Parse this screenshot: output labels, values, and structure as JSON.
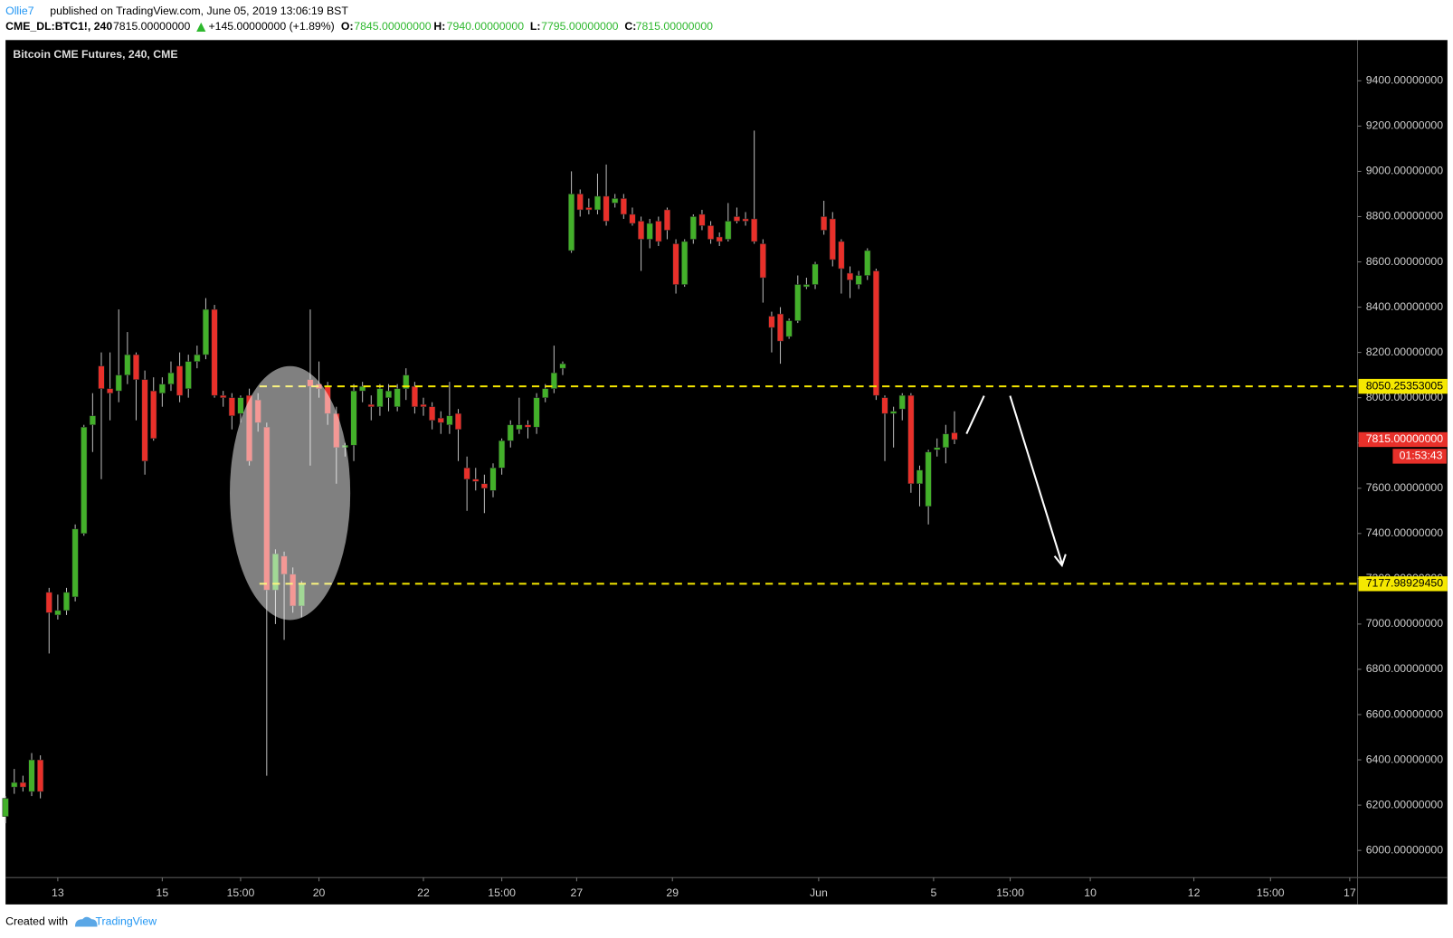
{
  "header": {
    "author": "Ollie7",
    "published": "published on TradingView.com, June 05, 2019 13:06:19 BST",
    "symbol": "CME_DL:BTC1!, 240",
    "last": "7815.00000000",
    "change": "+145.00000000 (+1.89%)",
    "o_label": "O:",
    "o": "7845.00000000",
    "h_label": "H:",
    "h": "7940.00000000",
    "l_label": "L:",
    "l": "7795.00000000",
    "c_label": "C:",
    "c": "7815.00000000"
  },
  "footer": {
    "created": "Created with",
    "brand": "TradingView"
  },
  "chart_data": {
    "type": "candlestick",
    "title": "Bitcoin CME Futures, 240, CME",
    "up_color": "#43b02a",
    "down_color": "#e8302a",
    "open": [
      6150,
      6280,
      6300,
      6260,
      6400,
      7140,
      7040,
      7060,
      7120,
      7400,
      7880,
      8140,
      8040,
      8030,
      8100,
      8190,
      8080,
      8030,
      8020,
      8060,
      8140,
      8040,
      8160,
      8190,
      8390,
      8010,
      8000,
      7930,
      8010,
      7990,
      7870,
      7150,
      7300,
      7220,
      7080,
      8080,
      8060,
      8050,
      7930,
      7780,
      7790,
      8030,
      7970,
      7960,
      8000,
      7960,
      8040,
      8050,
      7970,
      7960,
      7910,
      7880,
      7930,
      7690,
      7640,
      7620,
      7590,
      7690,
      7810,
      7860,
      7880,
      7870,
      8000,
      8040,
      8130,
      8650,
      8900,
      8840,
      8830,
      8890,
      8860,
      8880,
      8810,
      8780,
      8700,
      8780,
      8830,
      8680,
      8500,
      8700,
      8810,
      8760,
      8710,
      8700,
      8800,
      8790,
      8790,
      8680,
      8360,
      8370,
      8270,
      8340,
      8490,
      8500,
      8800,
      8790,
      8690,
      8550,
      8500,
      8540,
      8560,
      8000,
      7930,
      7950,
      8010,
      7620,
      7520,
      7770,
      7780,
      7845
    ],
    "high": [
      6240,
      6360,
      6330,
      6430,
      6420,
      7160,
      7130,
      7160,
      7440,
      7880,
      8020,
      8200,
      8200,
      8390,
      8290,
      8200,
      8120,
      8090,
      8090,
      8160,
      8200,
      8190,
      8230,
      8440,
      8410,
      8030,
      8020,
      8010,
      8040,
      8020,
      7890,
      7330,
      7320,
      7250,
      7190,
      8390,
      8160,
      8070,
      7960,
      7800,
      8060,
      8070,
      8010,
      8060,
      8060,
      8060,
      8130,
      8070,
      8000,
      7980,
      7940,
      8070,
      7950,
      7740,
      7690,
      7660,
      7710,
      7820,
      7900,
      8000,
      7900,
      8020,
      8060,
      8230,
      8160,
      9000,
      8920,
      8880,
      8990,
      9030,
      8900,
      8900,
      8840,
      8800,
      8790,
      8800,
      8840,
      8700,
      8700,
      8810,
      8830,
      8780,
      8730,
      8860,
      8840,
      8820,
      9180,
      8700,
      8380,
      8400,
      8350,
      8540,
      8530,
      8600,
      8870,
      8820,
      8700,
      8580,
      8560,
      8660,
      8570,
      8010,
      7960,
      8020,
      8020,
      7700,
      7770,
      7820,
      7880,
      7940
    ],
    "low": [
      6120,
      6250,
      6260,
      6240,
      6230,
      6870,
      7020,
      7040,
      7100,
      7390,
      7760,
      7640,
      7900,
      7980,
      8060,
      7900,
      7660,
      7810,
      7960,
      8030,
      7980,
      8000,
      8130,
      8170,
      8000,
      7960,
      7860,
      7890,
      7700,
      7850,
      6330,
      7000,
      6930,
      7050,
      7030,
      7700,
      8000,
      7880,
      7620,
      7740,
      7720,
      7980,
      7900,
      7920,
      7940,
      7940,
      7990,
      7930,
      7920,
      7860,
      7840,
      7840,
      7720,
      7500,
      7590,
      7490,
      7560,
      7660,
      7780,
      7840,
      7820,
      7840,
      7980,
      8020,
      8100,
      8640,
      8800,
      8810,
      8810,
      8760,
      8840,
      8790,
      8760,
      8560,
      8660,
      8670,
      8700,
      8460,
      8490,
      8680,
      8740,
      8680,
      8670,
      8690,
      8770,
      8760,
      8680,
      8420,
      8200,
      8150,
      8260,
      8330,
      8480,
      8480,
      8720,
      8580,
      8460,
      8440,
      8480,
      8520,
      7990,
      7720,
      7780,
      7900,
      7580,
      7520,
      7440,
      7740,
      7710,
      7795
    ],
    "close": [
      6230,
      6300,
      6280,
      6400,
      6260,
      7050,
      7060,
      7140,
      7420,
      7870,
      7920,
      8040,
      8020,
      8100,
      8190,
      8080,
      7720,
      7820,
      8060,
      8110,
      8010,
      8160,
      8190,
      8390,
      8010,
      8000,
      7920,
      8000,
      7720,
      7890,
      7150,
      7310,
      7220,
      7080,
      7180,
      8050,
      8040,
      7930,
      7780,
      7790,
      8030,
      8050,
      7960,
      8040,
      8030,
      8040,
      8100,
      7960,
      7960,
      7900,
      7890,
      7920,
      7860,
      7640,
      7630,
      7600,
      7690,
      7810,
      7880,
      7880,
      7870,
      8000,
      8040,
      8110,
      8150,
      8900,
      8830,
      8830,
      8890,
      8780,
      8880,
      8810,
      8770,
      8700,
      8770,
      8690,
      8740,
      8500,
      8690,
      8800,
      8760,
      8700,
      8690,
      8780,
      8780,
      8780,
      8690,
      8530,
      8310,
      8250,
      8340,
      8500,
      8500,
      8590,
      8740,
      8610,
      8570,
      8520,
      8540,
      8650,
      8010,
      7930,
      7940,
      8010,
      7620,
      7680,
      7760,
      7780,
      7840,
      7815
    ],
    "xlim": [
      0,
      155.3
    ],
    "ylim": [
      5880,
      9580
    ],
    "xticks": [
      {
        "value": 6,
        "label": "13"
      },
      {
        "value": 18,
        "label": "15"
      },
      {
        "value": 27,
        "label": "15:00"
      },
      {
        "value": 36,
        "label": "20"
      },
      {
        "value": 48,
        "label": "22"
      },
      {
        "value": 57,
        "label": "15:00"
      },
      {
        "value": 65.6,
        "label": "27"
      },
      {
        "value": 76.6,
        "label": "29"
      },
      {
        "value": 93.4,
        "label": "Jun"
      },
      {
        "value": 106.6,
        "label": "5"
      },
      {
        "value": 115.4,
        "label": "15:00"
      },
      {
        "value": 124.6,
        "label": "10"
      },
      {
        "value": 136.5,
        "label": "12"
      },
      {
        "value": 145.3,
        "label": "15:00"
      },
      {
        "value": 154.4,
        "label": "17"
      }
    ],
    "yticks": [
      {
        "value": 6000,
        "label": "6000.00000000"
      },
      {
        "value": 6200,
        "label": "6200.00000000"
      },
      {
        "value": 6400,
        "label": "6400.00000000"
      },
      {
        "value": 6600,
        "label": "6600.00000000"
      },
      {
        "value": 6800,
        "label": "6800.00000000"
      },
      {
        "value": 7000,
        "label": "7000.00000000"
      },
      {
        "value": 7200,
        "label": "7200.00000000"
      },
      {
        "value": 7400,
        "label": "7400.00000000"
      },
      {
        "value": 7600,
        "label": "7600.00000000"
      },
      {
        "value": 7800,
        "label": "7800.00000000"
      },
      {
        "value": 8000,
        "label": "8000.00000000"
      },
      {
        "value": 8200,
        "label": "8200.00000000"
      },
      {
        "value": 8400,
        "label": "8400.00000000"
      },
      {
        "value": 8600,
        "label": "8600.00000000"
      },
      {
        "value": 8800,
        "label": "8800.00000000"
      },
      {
        "value": 9000,
        "label": "9000.00000000"
      },
      {
        "value": 9200,
        "label": "9200.00000000"
      },
      {
        "value": 9400,
        "label": "9400.00000000"
      }
    ],
    "hlines": [
      {
        "value": 8050.25353005
      },
      {
        "value": 7177.9892945,
        "label": "7177.98929450"
      }
    ],
    "hline_color": "#f5e800",
    "last_price": {
      "value": 7815,
      "label": "7815.00000000"
    },
    "countdown": "01:53:43"
  }
}
